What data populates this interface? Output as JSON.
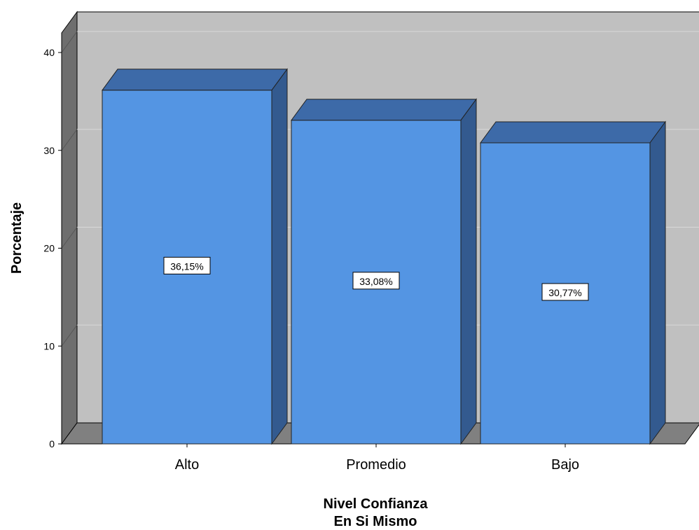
{
  "chart_data": {
    "type": "bar",
    "style": "3d",
    "categories": [
      "Alto",
      "Promedio",
      "Bajo"
    ],
    "values": [
      36.15,
      33.08,
      30.77
    ],
    "data_labels": [
      "36,15%",
      "33,08%",
      "30,77%"
    ],
    "ylabel": "Porcentaje",
    "xlabel_lines": [
      "Nivel Confianza",
      "En Si Mismo"
    ],
    "yticks": [
      0,
      10,
      20,
      30,
      40
    ],
    "ylim": [
      0,
      40
    ],
    "grid": true,
    "colors": {
      "bar_front": "#5495e3",
      "bar_top": "#3d6aa8",
      "bar_side": "#335a8f",
      "back_wall": "#c0c0c0",
      "side_wall": "#6e6e6e",
      "floor": "#808080",
      "gridline": "#d8d8d8"
    }
  }
}
